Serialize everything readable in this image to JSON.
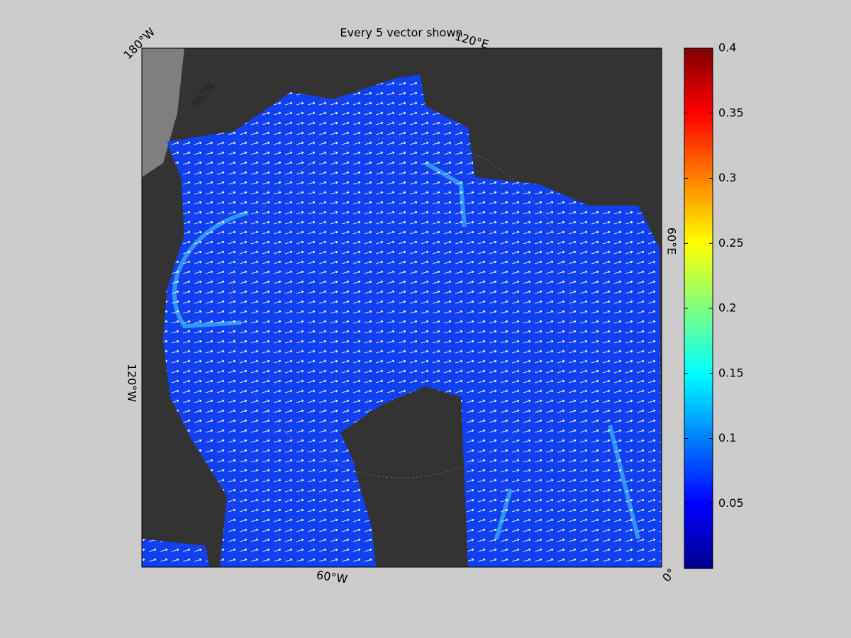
{
  "title": "Every 5 vector shown",
  "map": {
    "graticule_labels": [
      "180°W",
      "120°E",
      "60°E",
      "0°",
      "60°W",
      "120°W",
      "86°N"
    ]
  },
  "colorbar": {
    "colormap": "jet",
    "lim": [
      0,
      0.4
    ],
    "ticks": [
      0.05,
      0.1,
      0.15,
      0.2,
      0.25,
      0.3,
      0.35,
      0.4
    ]
  }
}
